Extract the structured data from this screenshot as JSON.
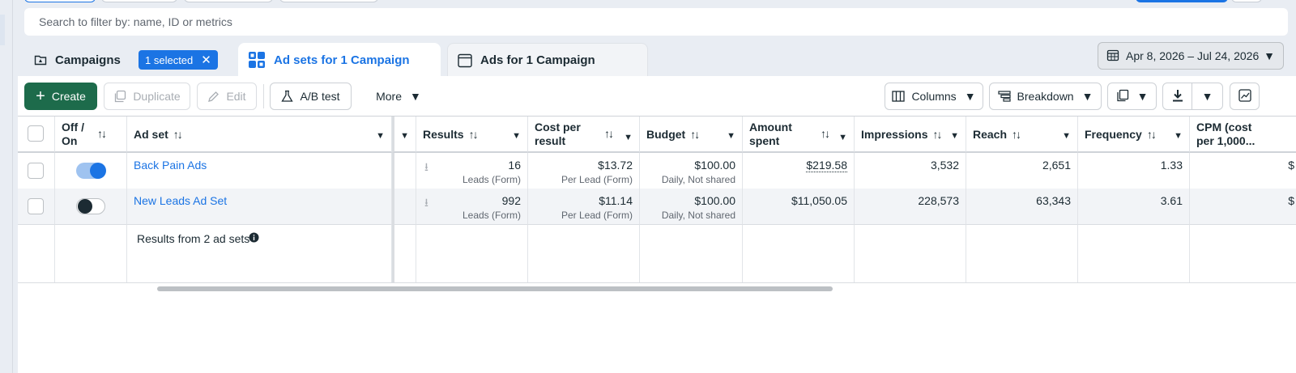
{
  "search": {
    "placeholder": "Search to filter by: name, ID or metrics"
  },
  "tabs": {
    "campaigns": "Campaigns",
    "selected_badge": "1 selected",
    "adsets": "Ad sets for 1 Campaign",
    "ads": "Ads for 1 Campaign"
  },
  "date_range": "Apr 8, 2026 – Jul 24, 2026",
  "toolbar": {
    "create": "Create",
    "duplicate": "Duplicate",
    "edit": "Edit",
    "ab_test": "A/B test",
    "more": "More",
    "columns": "Columns",
    "breakdown": "Breakdown"
  },
  "table": {
    "headers": {
      "off_on": "Off / On",
      "ad_set": "Ad set",
      "results": "Results",
      "cost_per_result": "Cost per result",
      "budget": "Budget",
      "amount_spent": "Amount spent",
      "impressions": "Impressions",
      "reach": "Reach",
      "frequency": "Frequency",
      "cpm": "CPM (cost per 1,000..."
    },
    "rows": [
      {
        "toggle": "on",
        "name": "Back Pain Ads",
        "results": "16",
        "results_sub": "Leads (Form)",
        "cost": "$13.72",
        "cost_sub": "Per Lead (Form)",
        "budget": "$100.00",
        "budget_sub": "Daily, Not shared",
        "spent": "$219.58",
        "impressions": "3,532",
        "reach": "2,651",
        "frequency": "1.33",
        "cpm": "$"
      },
      {
        "toggle": "off",
        "name": "New Leads Ad Set",
        "results": "992",
        "results_sub": "Leads (Form)",
        "cost": "$11.14",
        "cost_sub": "Per Lead (Form)",
        "budget": "$100.00",
        "budget_sub": "Daily, Not shared",
        "spent": "$11,050.05",
        "impressions": "228,573",
        "reach": "63,343",
        "frequency": "3.61",
        "cpm": "$"
      }
    ],
    "footer": "Results from 2 ad sets"
  },
  "colors": {
    "accent": "#1b74e4",
    "create": "#1d6b4b"
  }
}
